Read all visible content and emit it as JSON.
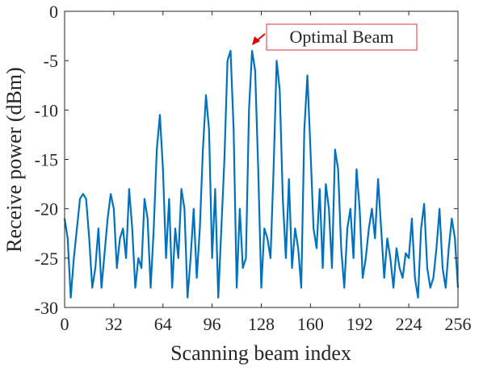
{
  "chart_data": {
    "type": "line",
    "xlabel": "Scanning beam index",
    "ylabel": "Receive power (dBm)",
    "annotation": "Optimal Beam",
    "xlim": [
      0,
      256
    ],
    "xticks": [
      0,
      32,
      64,
      96,
      128,
      160,
      192,
      224,
      256
    ],
    "ylim": [
      -30,
      0
    ],
    "yticks": [
      -30,
      -25,
      -20,
      -15,
      -10,
      -5,
      0
    ],
    "series": [
      {
        "name": "Receive power",
        "color": "#0072bd",
        "x": [
          0,
          2,
          4,
          6,
          8,
          10,
          12,
          14,
          16,
          18,
          20,
          22,
          24,
          26,
          28,
          30,
          32,
          34,
          36,
          38,
          40,
          42,
          44,
          46,
          48,
          50,
          52,
          54,
          56,
          58,
          60,
          62,
          64,
          66,
          68,
          70,
          72,
          74,
          76,
          78,
          80,
          82,
          84,
          86,
          88,
          90,
          92,
          94,
          96,
          98,
          100,
          102,
          104,
          106,
          108,
          110,
          112,
          114,
          116,
          118,
          120,
          122,
          124,
          126,
          128,
          130,
          132,
          134,
          136,
          138,
          140,
          142,
          144,
          146,
          148,
          150,
          152,
          154,
          156,
          158,
          160,
          162,
          164,
          166,
          168,
          170,
          172,
          174,
          176,
          178,
          180,
          182,
          184,
          186,
          188,
          190,
          192,
          194,
          196,
          198,
          200,
          202,
          204,
          206,
          208,
          210,
          212,
          214,
          216,
          218,
          220,
          222,
          224,
          226,
          228,
          230,
          232,
          234,
          236,
          238,
          240,
          242,
          244,
          246,
          248,
          250,
          252,
          254,
          256
        ],
        "values": [
          -21,
          -23,
          -29,
          -25,
          -22,
          -19,
          -18.5,
          -19,
          -23,
          -28,
          -26,
          -22,
          -28,
          -24.5,
          -21,
          -18.5,
          -20,
          -26,
          -23,
          -22,
          -25,
          -18,
          -22,
          -28,
          -25,
          -26,
          -19,
          -21,
          -28,
          -22,
          -14,
          -10.5,
          -16,
          -25,
          -19,
          -28,
          -22,
          -25,
          -18,
          -20,
          -29,
          -25,
          -20,
          -27,
          -22,
          -14,
          -8.5,
          -12,
          -25,
          -18,
          -29,
          -22,
          -15,
          -5,
          -4,
          -12,
          -28,
          -20,
          -26,
          -25,
          -10,
          -4,
          -6,
          -16,
          -28,
          -22,
          -23,
          -25,
          -16,
          -5,
          -8,
          -19,
          -25,
          -17,
          -26,
          -22,
          -24,
          -28,
          -12,
          -6.5,
          -14,
          -22,
          -24,
          -18,
          -26,
          -17.5,
          -20,
          -26,
          -14,
          -16,
          -24,
          -28,
          -22,
          -20,
          -25,
          -16,
          -20,
          -27,
          -25,
          -22,
          -20,
          -23,
          -17,
          -22,
          -27,
          -23,
          -25,
          -28,
          -24,
          -26,
          -27,
          -24.5,
          -25,
          -21,
          -27,
          -29,
          -22,
          -19.5,
          -26,
          -28,
          -27,
          -24,
          -20,
          -26,
          -28,
          -24,
          -21,
          -23,
          -28
        ]
      }
    ]
  }
}
